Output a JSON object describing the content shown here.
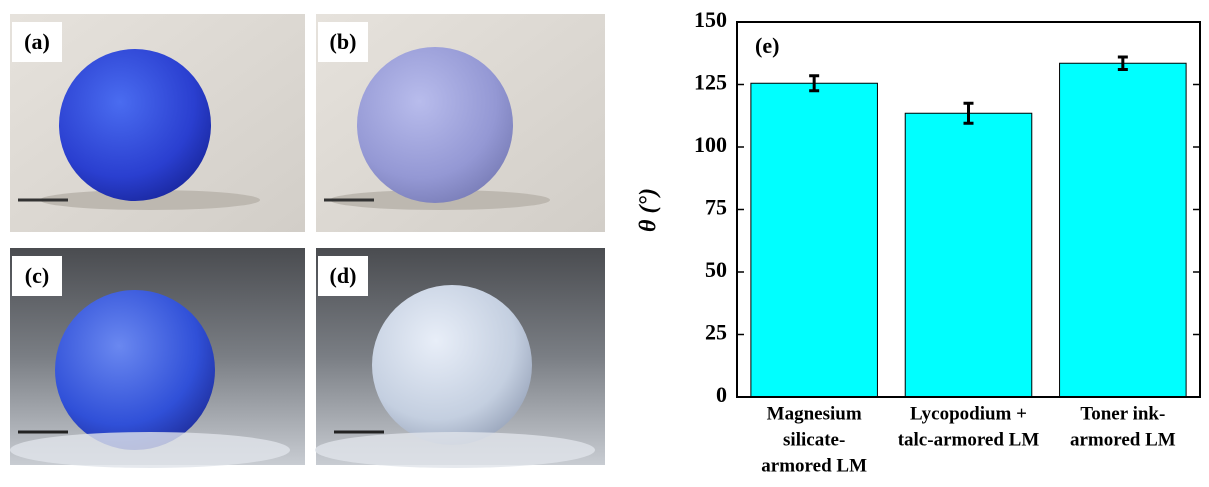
{
  "panels": [
    {
      "label": "(a)"
    },
    {
      "label": "(b)"
    },
    {
      "label": "(c)"
    },
    {
      "label": "(d)"
    }
  ],
  "chart_data": {
    "type": "bar",
    "panel_label": "(e)",
    "y_label": "θ (°)",
    "categories": [
      [
        "Magnesium",
        "silicate-",
        "armored LM"
      ],
      [
        "Lycopodium +",
        "talc-armored LM"
      ],
      [
        "Toner ink-",
        "armored LM"
      ]
    ],
    "values": [
      125.5,
      113.5,
      133.5
    ],
    "errors": [
      3,
      4,
      2.5
    ],
    "color": "#00ffff",
    "ylim": [
      0,
      150
    ],
    "yticks": [
      0,
      25,
      50,
      75,
      100,
      125,
      150
    ]
  }
}
